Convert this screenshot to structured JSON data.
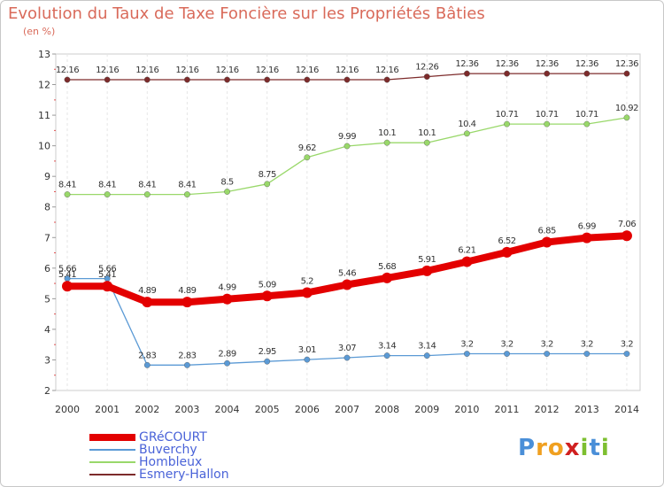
{
  "chart_data": {
    "type": "line",
    "title": "Evolution du Taux de Taxe Foncière sur les Propriétés Bâties",
    "ylabel": "(en %)",
    "xlabel": "",
    "ylim": [
      2,
      13
    ],
    "yticks": [
      "2",
      "3",
      "4",
      "5",
      "6",
      "7",
      "8",
      "9",
      "10",
      "11",
      "12",
      "13"
    ],
    "categories": [
      "2000",
      "2001",
      "2002",
      "2003",
      "2004",
      "2005",
      "2006",
      "2007",
      "2008",
      "2009",
      "2010",
      "2011",
      "2012",
      "2013",
      "2014"
    ],
    "series": [
      {
        "name": "GRéCOURT",
        "color": "#e30000",
        "values": [
          5.41,
          5.41,
          4.89,
          4.89,
          4.99,
          5.09,
          5.2,
          5.46,
          5.68,
          5.91,
          6.21,
          6.52,
          6.85,
          6.99,
          7.06
        ],
        "labels": [
          "5.41",
          "5.41",
          "4.89",
          "4.89",
          "4.99",
          "5.09",
          "5.2",
          "5.46",
          "5.68",
          "5.91",
          "6.21",
          "6.52",
          "6.85",
          "6.99",
          "7.06"
        ]
      },
      {
        "name": "Buverchy",
        "color": "#5b9ad5",
        "values": [
          5.66,
          5.66,
          2.83,
          2.83,
          2.89,
          2.95,
          3.01,
          3.07,
          3.14,
          3.14,
          3.2,
          3.2,
          3.2,
          3.2,
          3.2
        ],
        "labels": [
          "5.66",
          "5.66",
          "2.83",
          "2.83",
          "2.89",
          "2.95",
          "3.01",
          "3.07",
          "3.14",
          "3.14",
          "3.2",
          "3.2",
          "3.2",
          "3.2",
          "3.2"
        ]
      },
      {
        "name": "Hombleux",
        "color": "#99d86a",
        "values": [
          8.41,
          8.41,
          8.41,
          8.41,
          8.5,
          8.75,
          9.62,
          9.99,
          10.1,
          10.1,
          10.4,
          10.71,
          10.71,
          10.71,
          10.92
        ],
        "labels": [
          "8.41",
          "8.41",
          "8.41",
          "8.41",
          "8.5",
          "8.75",
          "9.62",
          "9.99",
          "10.1",
          "10.1",
          "10.4",
          "10.71",
          "10.71",
          "10.71",
          "10.92"
        ]
      },
      {
        "name": "Esmery-Hallon",
        "color": "#7d2b2b",
        "values": [
          12.16,
          12.16,
          12.16,
          12.16,
          12.16,
          12.16,
          12.16,
          12.16,
          12.16,
          12.26,
          12.36,
          12.36,
          12.36,
          12.36,
          12.36
        ],
        "labels": [
          "12.16",
          "12.16",
          "12.16",
          "12.16",
          "12.16",
          "12.16",
          "12.16",
          "12.16",
          "12.16",
          "12.26",
          "12.36",
          "12.36",
          "12.36",
          "12.36",
          "12.36"
        ]
      }
    ]
  },
  "legend": {
    "items": [
      {
        "label": "GRéCOURT",
        "color": "#e30000"
      },
      {
        "label": "Buverchy",
        "color": "#5b9ad5"
      },
      {
        "label": "Hombleux",
        "color": "#99d86a"
      },
      {
        "label": "Esmery-Hallon",
        "color": "#7d2b2b"
      }
    ]
  },
  "branding": {
    "logo_text": "Proxiti"
  }
}
